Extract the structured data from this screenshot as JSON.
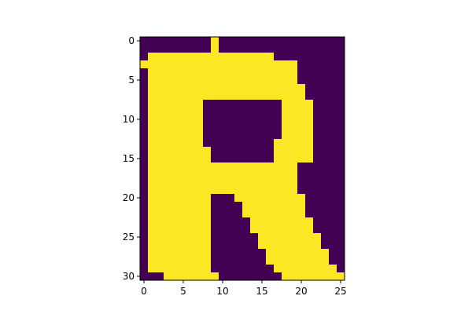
{
  "chart_data": {
    "type": "heatmap",
    "rows": 31,
    "cols": 26,
    "xticks": [
      0,
      5,
      10,
      15,
      20,
      25
    ],
    "yticks": [
      0,
      5,
      10,
      15,
      20,
      25,
      30
    ],
    "xlim": [
      -0.5,
      25.5
    ],
    "ylim": [
      30.5,
      -0.5
    ],
    "colors": {
      "low": "#440154",
      "high": "#fde725"
    },
    "grid": false,
    "legend": "none",
    "title": "",
    "xlabel": "",
    "ylabel": "",
    "image": [
      "00000000010000000000000000",
      "00000000010000000000000000",
      "01111111111111111000000000",
      "11111111111111111111000000",
      "01111111111111111111000000",
      "01111111111111111111000000",
      "01111111111111111111100000",
      "01111111111111111111100000",
      "01111111000000000011110000",
      "01111111000000000011110000",
      "01111111000000000011110000",
      "01111111000000000011110000",
      "01111111000000000011110000",
      "01111111000000000111110000",
      "01111111100000000111110000",
      "01111111100000000111110000",
      "01111111111111111111000000",
      "01111111111111111111000000",
      "01111111111111111111000000",
      "01111111111111111111000000",
      "01111111100011111111100000",
      "01111111100001111111100000",
      "01111111100001111111100000",
      "01111111100000111111110000",
      "01111111100000111111110000",
      "01111111100000011111111000",
      "01111111100000011111111000",
      "01111111100000001111111100",
      "01111111100000001111111100",
      "01111111100000000111111110",
      "00011111110000000011111111"
    ]
  }
}
